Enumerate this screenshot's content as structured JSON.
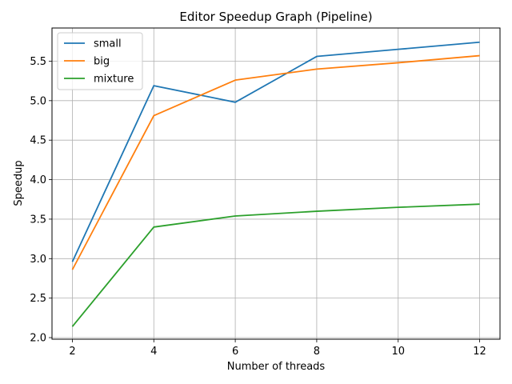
{
  "chart_data": {
    "type": "line",
    "title": "Editor Speedup Graph (Pipeline)",
    "xlabel": "Number of threads",
    "ylabel": "Speedup",
    "x": [
      2,
      4,
      6,
      8,
      10,
      12
    ],
    "xticks": [
      "2",
      "4",
      "6",
      "8",
      "10",
      "12"
    ],
    "yticks": [
      "2.0",
      "2.5",
      "3.0",
      "3.5",
      "4.0",
      "4.5",
      "5.0",
      "5.5"
    ],
    "xlim": [
      1.5,
      12.5
    ],
    "ylim": [
      1.98,
      5.92
    ],
    "grid": true,
    "legend_position": "upper-left",
    "series": [
      {
        "name": "small",
        "color": "#1f77b4",
        "values": [
          2.96,
          5.19,
          4.98,
          5.56,
          5.65,
          5.74
        ]
      },
      {
        "name": "big",
        "color": "#ff7f0e",
        "values": [
          2.86,
          4.81,
          5.26,
          5.4,
          5.48,
          5.57
        ]
      },
      {
        "name": "mixture",
        "color": "#2ca02c",
        "values": [
          2.14,
          3.4,
          3.54,
          3.6,
          3.65,
          3.69
        ]
      }
    ]
  }
}
